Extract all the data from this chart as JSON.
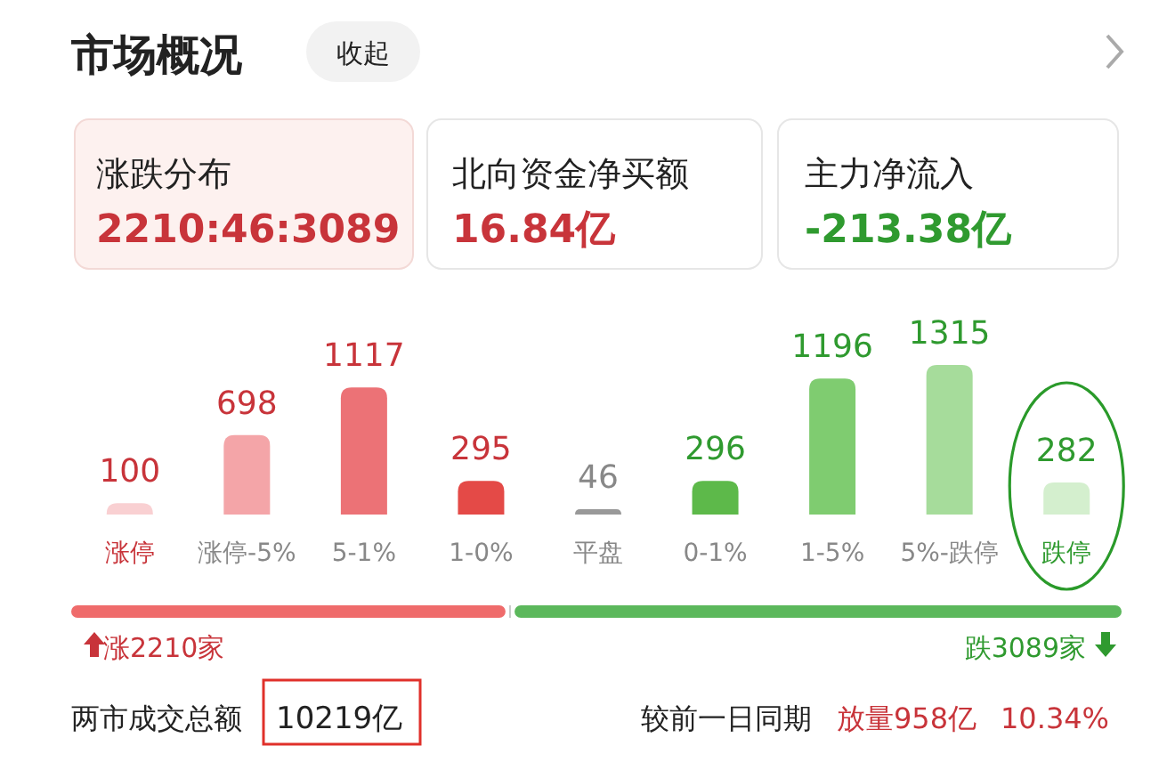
{
  "chart_data": {
    "type": "bar",
    "title": "市场概况",
    "categories": [
      "涨停",
      "涨停-5%",
      "5-1%",
      "1-0%",
      "平盘",
      "0-1%",
      "1-5%",
      "5%-跌停",
      "跌停"
    ],
    "values": [
      100,
      698,
      1117,
      295,
      46,
      296,
      1196,
      1315,
      282
    ],
    "colors": [
      "#f9d0d2",
      "#f4a5a8",
      "#ec7276",
      "#e44a47",
      "#999999",
      "#5db94a",
      "#7fcc70",
      "#a6dc9b",
      "#d4efce"
    ],
    "data_labels": true,
    "annotations": [
      "收起",
      "涨跌分布",
      "2210:46:3089",
      "北向资金净买额",
      "16.84亿",
      "主力净流入",
      "-213.38亿",
      "涨2210家",
      "跌3089家",
      "两市成交总额",
      "10219亿",
      "较前一日同期",
      "放量958亿",
      "10.34%"
    ]
  }
}
